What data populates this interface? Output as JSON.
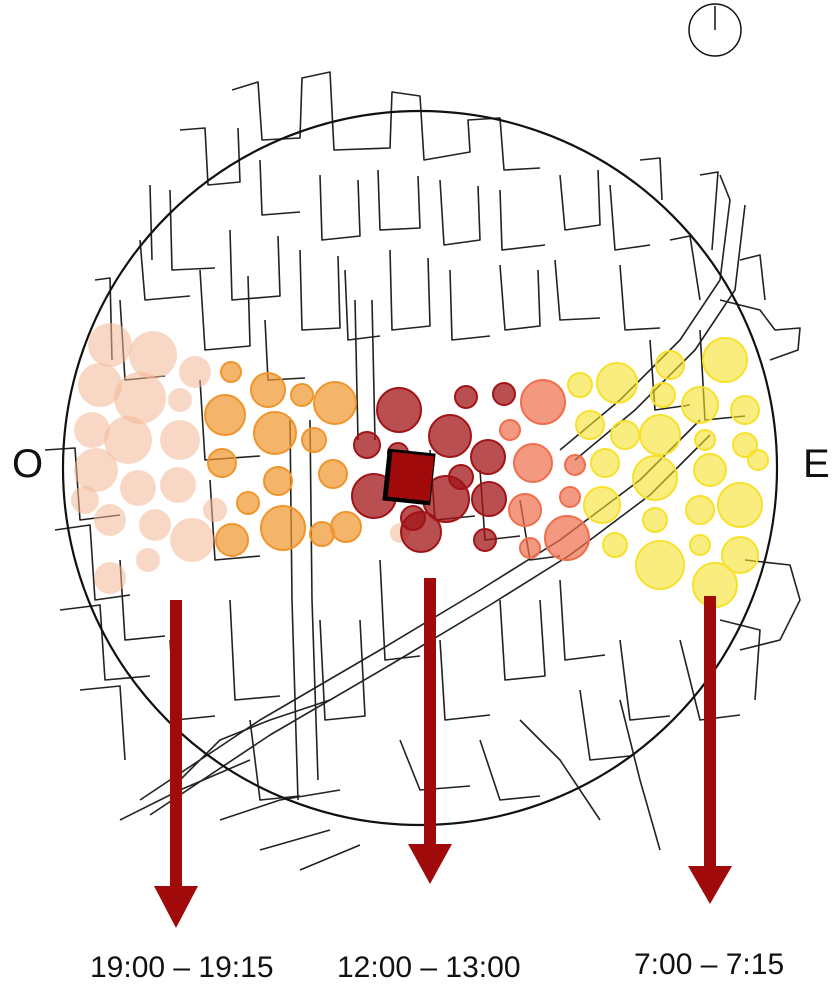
{
  "labels": {
    "west": "O",
    "east": "E"
  },
  "time_windows": {
    "evening": "19:00 – 19:15",
    "noon": "12:00 – 13:00",
    "morning": "7:00 – 7:15"
  },
  "colors": {
    "evening_faint": "#f2b896",
    "evening": "#f0952c",
    "noon": "#a11417",
    "noon_adjacent": "#f06e4c",
    "morning": "#f7e12c",
    "arrow": "#a00a0a",
    "street_outline": "#222222",
    "circle_outline": "#111111"
  },
  "icons": {
    "compass": "north-indicator-icon",
    "building": "central-building-icon"
  }
}
